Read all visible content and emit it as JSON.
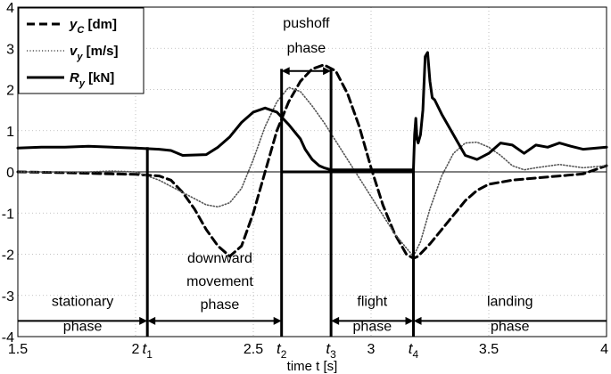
{
  "chart_data": {
    "type": "line",
    "xlabel": "time t [s]",
    "ylabel": "",
    "xlim": [
      1.5,
      4
    ],
    "ylim": [
      -4,
      4
    ],
    "xticks": [
      1.5,
      2,
      2.5,
      3,
      3.5,
      4
    ],
    "xtick_labels": [
      "1.5",
      "2",
      "2.5",
      "3",
      "3.5",
      "4"
    ],
    "yticks": [
      -4,
      -3,
      -2,
      -1,
      0,
      1,
      2,
      3,
      4
    ],
    "ytick_labels": [
      "-4",
      "-3",
      "-2",
      "-1",
      "0",
      "1",
      "2",
      "3",
      "4"
    ],
    "grid": true,
    "legend_position": "top-left",
    "series": [
      {
        "name": "yC [dm]",
        "name_main": "y",
        "name_sub": "C",
        "name_unit": "[dm]",
        "style": "dashed",
        "x": [
          1.5,
          1.7,
          1.9,
          2.0,
          2.1,
          2.15,
          2.2,
          2.25,
          2.3,
          2.35,
          2.4,
          2.45,
          2.5,
          2.55,
          2.6,
          2.65,
          2.7,
          2.75,
          2.8,
          2.85,
          2.9,
          2.95,
          3.0,
          3.05,
          3.1,
          3.15,
          3.18,
          3.2,
          3.25,
          3.3,
          3.35,
          3.4,
          3.45,
          3.5,
          3.6,
          3.7,
          3.8,
          3.9,
          4.0
        ],
        "y": [
          0.0,
          -0.02,
          -0.05,
          -0.06,
          -0.1,
          -0.2,
          -0.5,
          -0.9,
          -1.4,
          -1.8,
          -2.05,
          -1.8,
          -1.0,
          0.0,
          1.0,
          1.7,
          2.2,
          2.5,
          2.6,
          2.45,
          1.9,
          1.1,
          0.1,
          -0.8,
          -1.5,
          -2.0,
          -2.1,
          -2.05,
          -1.75,
          -1.4,
          -1.05,
          -0.7,
          -0.45,
          -0.3,
          -0.2,
          -0.15,
          -0.1,
          -0.05,
          0.15
        ]
      },
      {
        "name": "vy [m/s]",
        "name_main": "v",
        "name_sub": "y",
        "name_unit": "[m/s]",
        "style": "dotted",
        "x": [
          1.5,
          1.8,
          1.9,
          2.0,
          2.05,
          2.1,
          2.2,
          2.3,
          2.35,
          2.4,
          2.45,
          2.5,
          2.55,
          2.6,
          2.65,
          2.7,
          2.75,
          2.8,
          2.9,
          3.0,
          3.05,
          3.1,
          3.15,
          3.18,
          3.21,
          3.25,
          3.3,
          3.35,
          3.4,
          3.45,
          3.5,
          3.55,
          3.6,
          3.65,
          3.7,
          3.8,
          3.9,
          4.0
        ],
        "y": [
          0.0,
          0.0,
          0.02,
          0.0,
          -0.1,
          -0.2,
          -0.5,
          -0.8,
          -0.85,
          -0.75,
          -0.4,
          0.3,
          1.1,
          1.7,
          2.05,
          1.95,
          1.6,
          1.2,
          0.3,
          -0.6,
          -1.05,
          -1.5,
          -1.85,
          -2.05,
          -1.7,
          -0.9,
          -0.1,
          0.45,
          0.7,
          0.72,
          0.6,
          0.4,
          0.15,
          0.05,
          0.1,
          0.18,
          0.1,
          0.15
        ]
      },
      {
        "name": "Ry [kN]",
        "name_main": "R",
        "name_sub": "y",
        "name_unit": "[kN]",
        "style": "solid",
        "x": [
          1.5,
          1.6,
          1.7,
          1.8,
          1.9,
          2.0,
          2.1,
          2.15,
          2.2,
          2.3,
          2.35,
          2.4,
          2.45,
          2.5,
          2.55,
          2.6,
          2.65,
          2.7,
          2.72,
          2.75,
          2.78,
          2.8,
          2.83,
          3.0,
          3.18,
          3.185,
          3.19,
          3.195,
          3.2,
          3.21,
          3.22,
          3.23,
          3.24,
          3.25,
          3.26,
          3.27,
          3.3,
          3.35,
          3.4,
          3.45,
          3.5,
          3.55,
          3.6,
          3.65,
          3.7,
          3.75,
          3.8,
          3.85,
          3.9,
          4.0
        ],
        "y": [
          0.58,
          0.6,
          0.6,
          0.62,
          0.6,
          0.58,
          0.55,
          0.52,
          0.4,
          0.42,
          0.6,
          0.85,
          1.2,
          1.45,
          1.55,
          1.45,
          1.15,
          0.8,
          0.55,
          0.3,
          0.15,
          0.1,
          0.05,
          0.05,
          0.05,
          0.9,
          1.3,
          0.8,
          0.7,
          0.9,
          1.5,
          2.8,
          2.9,
          2.2,
          1.8,
          1.75,
          1.4,
          0.9,
          0.4,
          0.3,
          0.45,
          0.7,
          0.65,
          0.45,
          0.65,
          0.6,
          0.7,
          0.62,
          0.55,
          0.6
        ]
      }
    ],
    "phase_markers": [
      {
        "x": 2.05,
        "label_main": "t",
        "label_sub": "1",
        "y_top": 0.6
      },
      {
        "x": 2.62,
        "label_main": "t",
        "label_sub": "2",
        "y_top": 2.5
      },
      {
        "x": 2.83,
        "label_main": "t",
        "label_sub": "3",
        "y_top": 2.5
      },
      {
        "x": 3.18,
        "label_main": "t",
        "label_sub": "4",
        "y_top": 0.05
      }
    ],
    "phases": [
      {
        "lines": [
          "stationary",
          "phase"
        ]
      },
      {
        "lines": [
          "downward",
          "movement",
          "phase"
        ]
      },
      {
        "lines": [
          "pushoff",
          "phase"
        ]
      },
      {
        "lines": [
          "flight",
          "phase"
        ]
      },
      {
        "lines": [
          "landing",
          "phase"
        ]
      }
    ]
  }
}
